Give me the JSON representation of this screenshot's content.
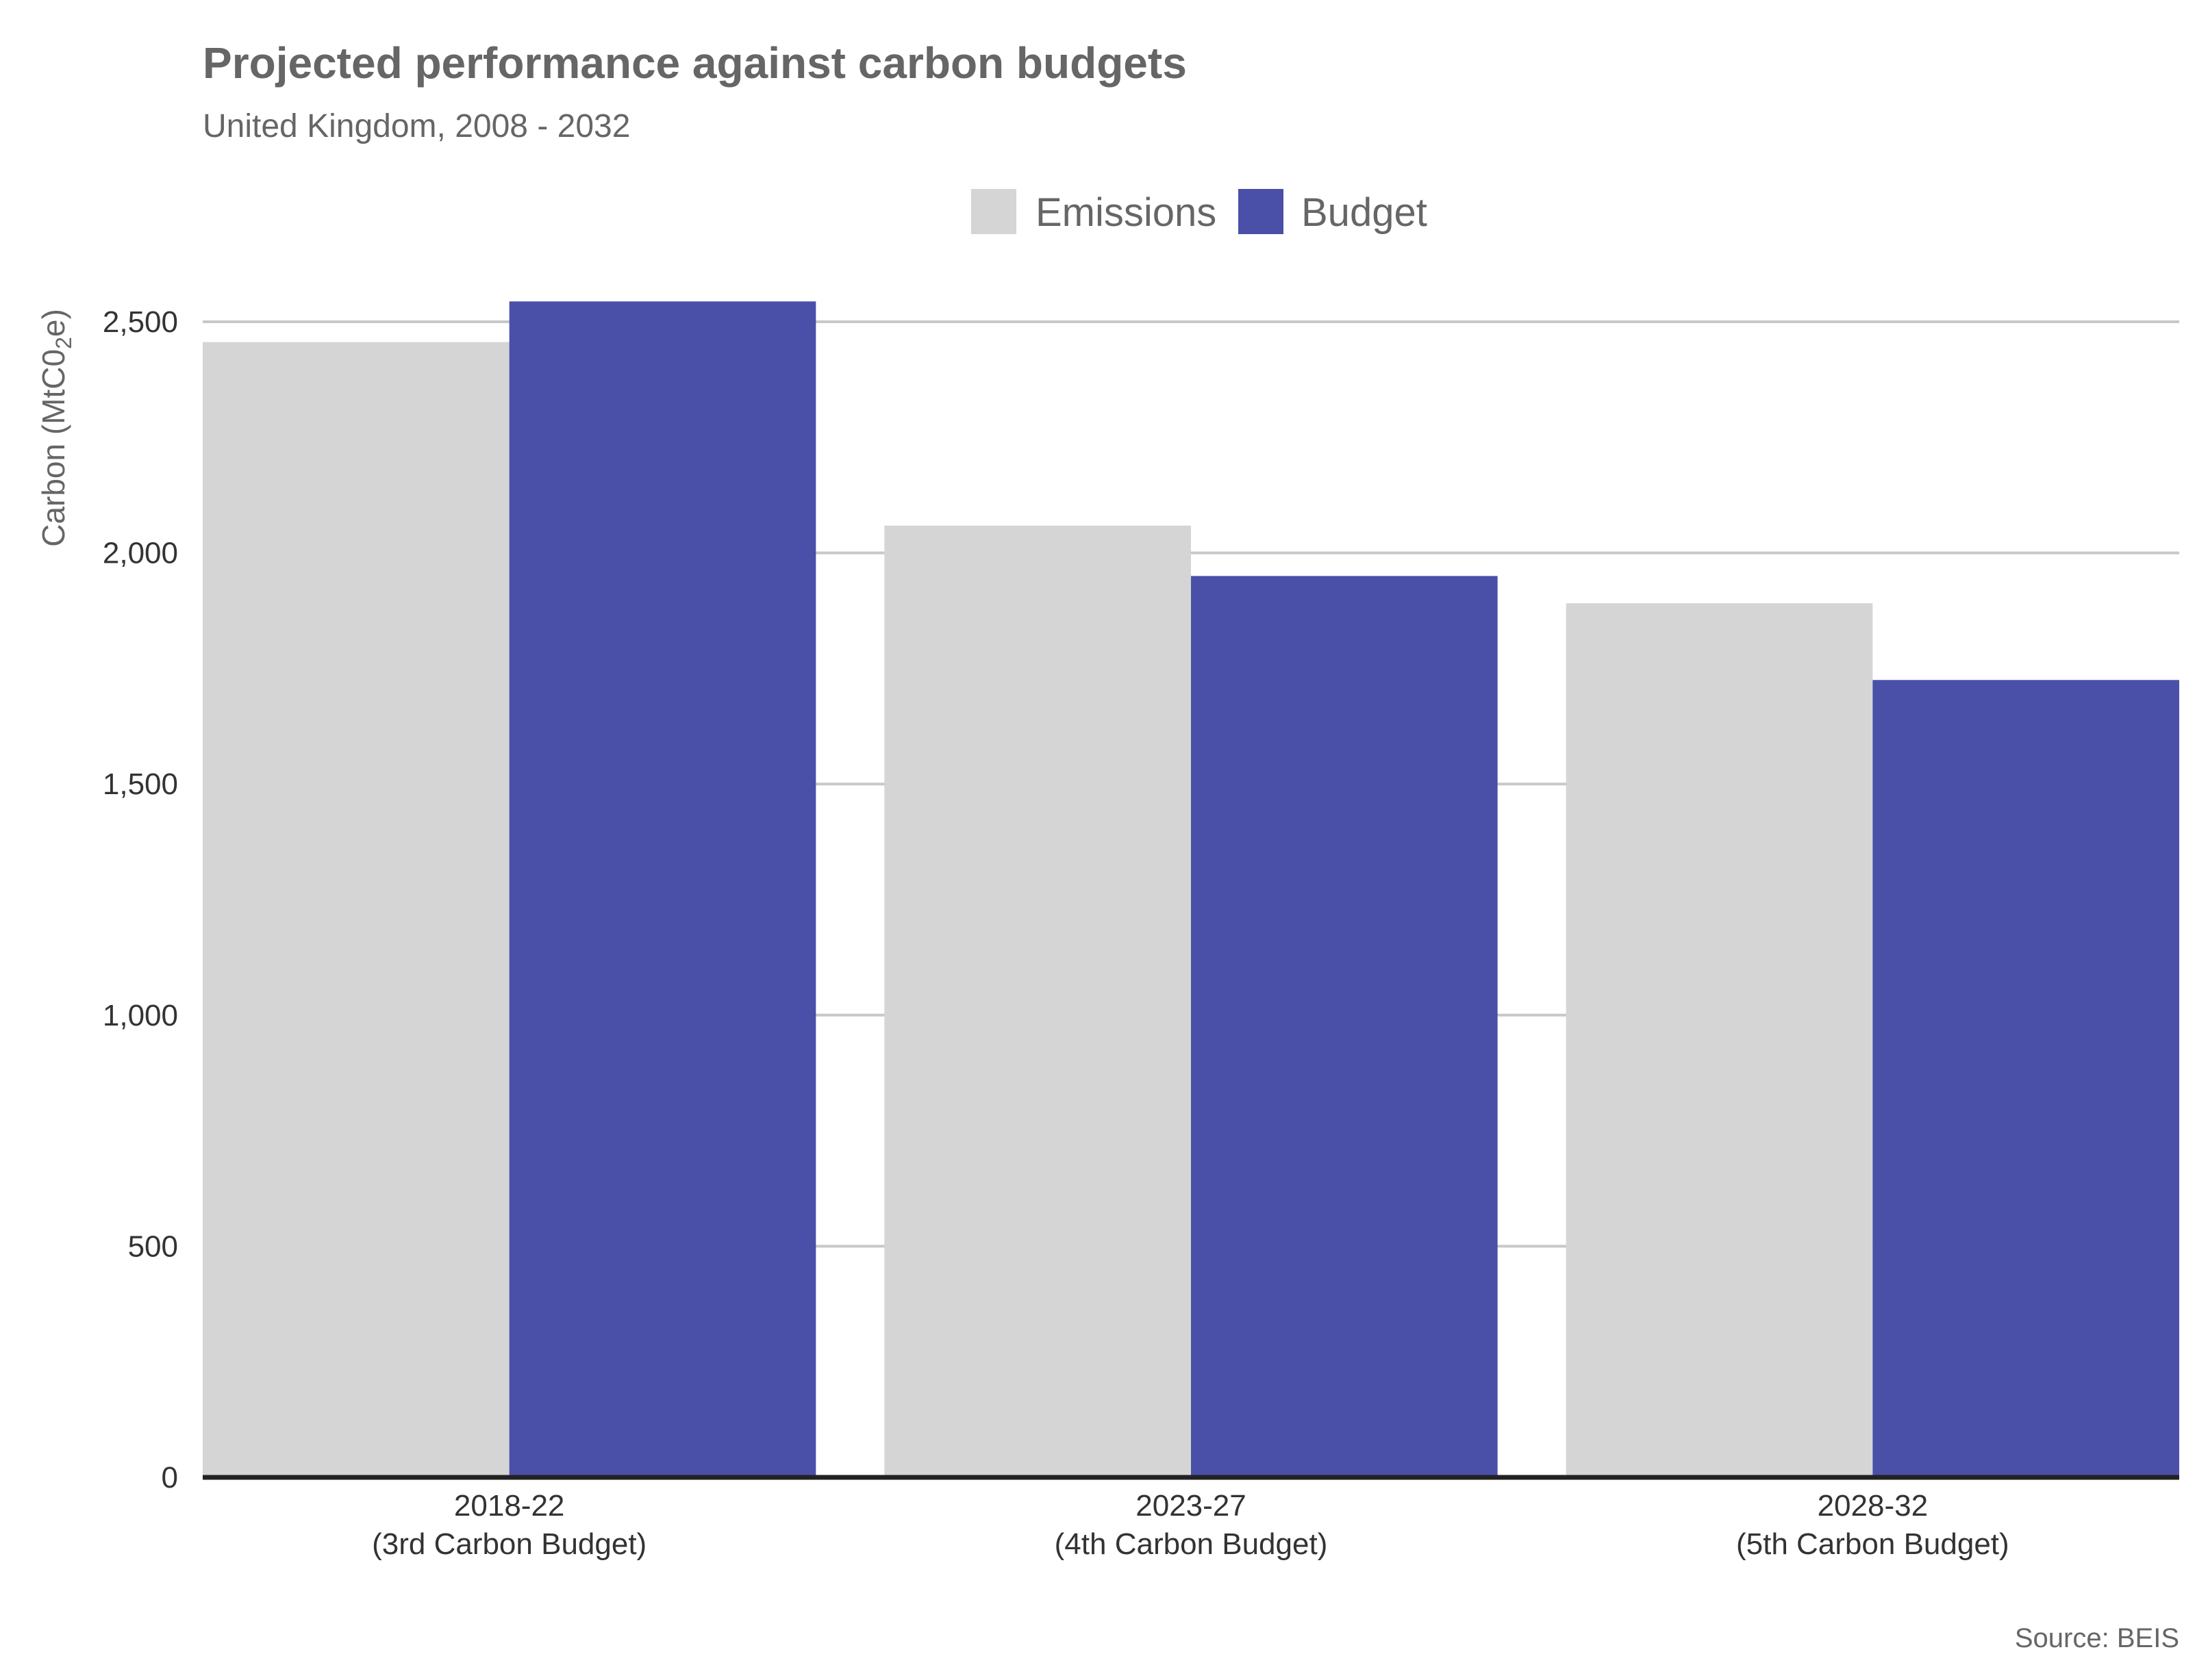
{
  "colors": {
    "emissions": "#d5d5d5",
    "budget": "#4a50a8",
    "grid": "#c8c8c8",
    "baseline": "#222222"
  },
  "chart_data": {
    "type": "bar",
    "title": "Projected performance against carbon budgets",
    "subtitle": "United Kingdom, 2008 - 2032",
    "ylabel_prefix": "Carbon (MtC0",
    "ylabel_sub": "2",
    "ylabel_suffix": "e)",
    "categories": [
      {
        "period": "2018-22",
        "label": "(3rd Carbon Budget)"
      },
      {
        "period": "2023-27",
        "label": "(4th Carbon Budget)"
      },
      {
        "period": "2028-32",
        "label": "(5th Carbon Budget)"
      }
    ],
    "series": [
      {
        "name": "Emissions",
        "values": [
          2456,
          2059,
          1891
        ]
      },
      {
        "name": "Budget",
        "values": [
          2544,
          1950,
          1725
        ]
      }
    ],
    "ylim": [
      0,
      2500
    ],
    "yticks": [
      {
        "value": 0,
        "label": "0"
      },
      {
        "value": 500,
        "label": "500"
      },
      {
        "value": 1000,
        "label": "1,000"
      },
      {
        "value": 1500,
        "label": "1,500"
      },
      {
        "value": 2000,
        "label": "2,000"
      },
      {
        "value": 2500,
        "label": "2,500"
      }
    ],
    "grid": true,
    "legend_position": "top-center",
    "source": "Source: BEIS"
  }
}
